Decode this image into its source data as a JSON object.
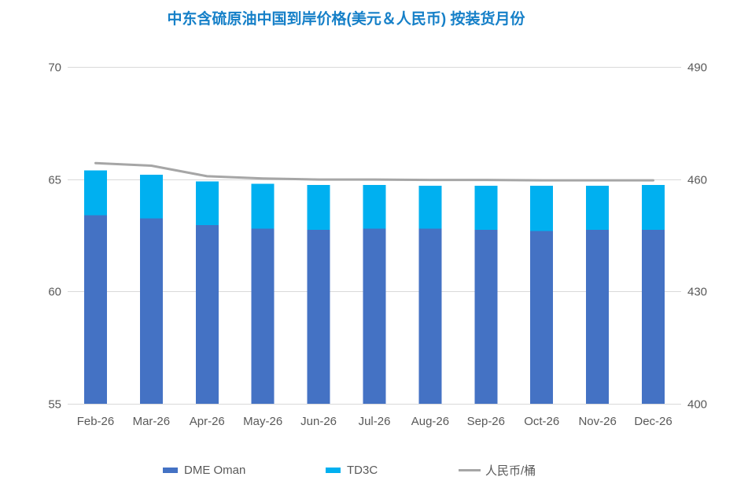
{
  "chart_data": {
    "type": "bar",
    "combo": "stacked-bar-with-line",
    "title": "中东含硫原油中国到岸价格(美元＆人民币) 按装货月份",
    "categories": [
      "Feb-26",
      "Mar-26",
      "Apr-26",
      "May-26",
      "Jun-26",
      "Jul-26",
      "Aug-26",
      "Sep-26",
      "Oct-26",
      "Nov-26",
      "Dec-26"
    ],
    "series": [
      {
        "name": "DME Oman",
        "type": "bar",
        "stack": "price",
        "axis": "left",
        "color": "#4472C4",
        "values": [
          63.4,
          63.25,
          62.95,
          62.8,
          62.75,
          62.8,
          62.8,
          62.75,
          62.7,
          62.75,
          62.75
        ]
      },
      {
        "name": "TD3C",
        "type": "bar",
        "stack": "price",
        "axis": "left",
        "color": "#00B0F0",
        "values": [
          2.0,
          1.95,
          1.95,
          2.0,
          2.0,
          1.95,
          1.9,
          1.95,
          2.0,
          1.95,
          2.0
        ]
      },
      {
        "name": "人民币/桶",
        "type": "line",
        "axis": "right",
        "color": "#A6A6A6",
        "values": [
          464.3,
          463.6,
          460.8,
          460.2,
          459.9,
          459.9,
          459.8,
          459.8,
          459.7,
          459.7,
          459.7
        ]
      }
    ],
    "left_axis": {
      "min": 55,
      "max": 70,
      "ticks": [
        "70",
        "65",
        "60",
        "55"
      ]
    },
    "right_axis": {
      "min": 400,
      "max": 490,
      "ticks": [
        "490",
        "460",
        "430",
        "400"
      ]
    },
    "grid": true,
    "legend_position": "bottom",
    "colors": {
      "title": "#1680C8",
      "gridline": "#D9D9D9",
      "axis_text": "#595959",
      "background": "#FFFFFF"
    }
  }
}
